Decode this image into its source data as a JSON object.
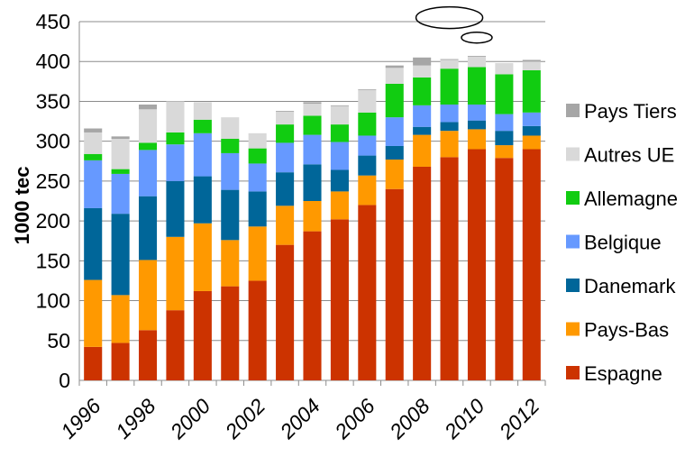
{
  "chart_data": {
    "type": "bar",
    "stacked": true,
    "ylabel": "1000 tec",
    "xlabel": "",
    "ylim": [
      0,
      450
    ],
    "yticks": [
      0,
      50,
      100,
      150,
      200,
      250,
      300,
      350,
      400,
      450
    ],
    "grid": true,
    "legend_position": "right",
    "categories": [
      "1996",
      "1997",
      "1998",
      "1999",
      "2000",
      "2001",
      "2002",
      "2003",
      "2004",
      "2005",
      "2006",
      "2007",
      "2008",
      "2009",
      "2010",
      "2011",
      "2012"
    ],
    "xtick_labels": [
      "1996",
      "1998",
      "2000",
      "2002",
      "2004",
      "2006",
      "2008",
      "2010",
      "2012"
    ],
    "series": [
      {
        "name": "Espagne",
        "color": "#cc3300",
        "values": [
          42,
          47,
          63,
          88,
          112,
          118,
          125,
          170,
          187,
          202,
          220,
          240,
          268,
          280,
          290,
          279,
          290
        ]
      },
      {
        "name": "Pays-Bas",
        "color": "#ff9900",
        "values": [
          84,
          60,
          88,
          92,
          85,
          58,
          68,
          49,
          38,
          35,
          37,
          37,
          40,
          33,
          25,
          16,
          17
        ]
      },
      {
        "name": "Danemark",
        "color": "#006699",
        "values": [
          90,
          102,
          80,
          70,
          59,
          63,
          44,
          42,
          46,
          27,
          25,
          17,
          10,
          11,
          11,
          18,
          12
        ]
      },
      {
        "name": "Belgique",
        "color": "#6699ff",
        "values": [
          60,
          50,
          58,
          46,
          54,
          46,
          35,
          37,
          37,
          35,
          25,
          36,
          27,
          22,
          20,
          21,
          17
        ]
      },
      {
        "name": "Allemagne",
        "color": "#11cc11",
        "values": [
          8,
          6,
          9,
          15,
          17,
          18,
          19,
          23,
          24,
          22,
          29,
          42,
          35,
          45,
          47,
          50,
          53
        ]
      },
      {
        "name": "Autres UE",
        "color": "#d9d9d9",
        "values": [
          27,
          38,
          42,
          39,
          22,
          27,
          19,
          16,
          15,
          23,
          28,
          20,
          15,
          11,
          13,
          14,
          11
        ]
      },
      {
        "name": "Pays Tiers",
        "color": "#a6a6a6",
        "values": [
          5,
          3,
          6,
          0,
          0,
          0,
          0,
          1,
          2,
          1,
          1,
          3,
          10,
          1,
          1,
          0,
          2
        ]
      }
    ],
    "legend_order": [
      "Pays Tiers",
      "Autres UE",
      "Allemagne",
      "Belgique",
      "Danemark",
      "Pays-Bas",
      "Espagne"
    ],
    "annotations": [
      {
        "shape": "ellipse",
        "x": "2009",
        "y": 455
      },
      {
        "shape": "ellipse",
        "x": "2010",
        "y": 430
      }
    ]
  }
}
